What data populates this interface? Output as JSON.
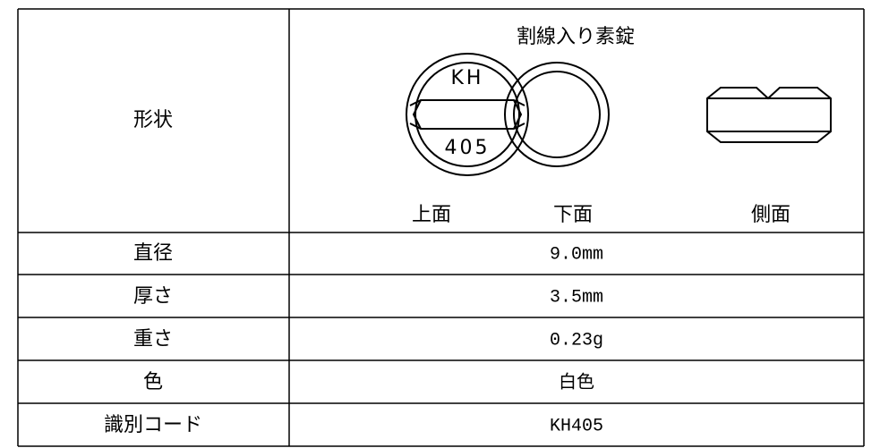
{
  "table": {
    "shape_row": {
      "label": "形状",
      "description": "割線入り素錠",
      "imprint": [
        "KH",
        "405"
      ],
      "views": [
        "上面",
        "下面",
        "側面"
      ]
    },
    "rows": [
      [
        "直径",
        "9.0mm"
      ],
      [
        "厚さ",
        "3.5mm"
      ],
      [
        "重さ",
        "0.23g"
      ],
      [
        "色",
        "白色"
      ],
      [
        "識別コード",
        "KH405"
      ]
    ]
  }
}
